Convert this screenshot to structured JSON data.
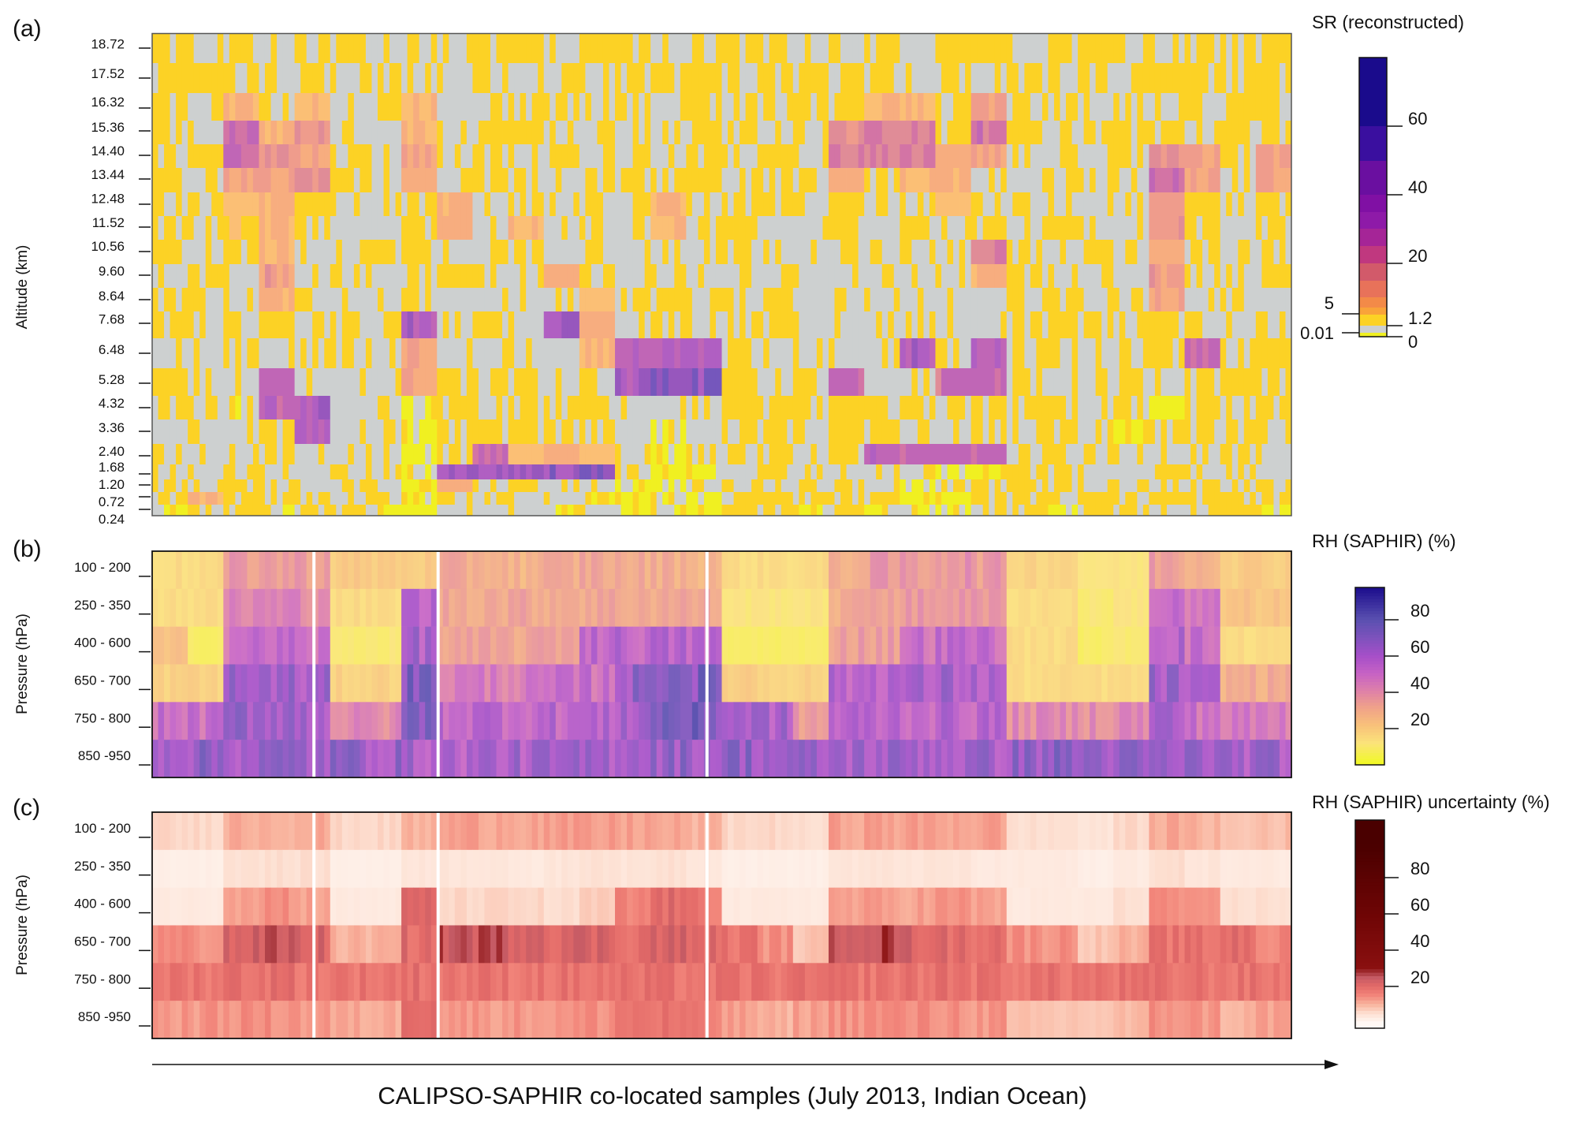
{
  "caption": "CALIPSO-SAPHIR co-located samples (July 2013, Indian Ocean)",
  "chart_data": [
    {
      "type": "heatmap",
      "panel": "(a)",
      "title": "SR (reconstructed)",
      "ylabel": "Altitude (km)",
      "xlabel": "CALIPSO-SAPHIR co-located samples (July 2013, Indian Ocean)",
      "rows": [
        "18.72",
        "17.52",
        "16.32",
        "15.36",
        "14.40",
        "13.44",
        "12.48",
        "11.52",
        "10.56",
        "9.60",
        "8.64",
        "7.68",
        "6.48",
        "5.28",
        "4.32",
        "3.36",
        "2.40",
        "1.68",
        "1.20",
        "0.72",
        "0.24"
      ],
      "colorbar": {
        "ticks_right": [
          "60",
          "40",
          "20",
          "1.2",
          "0"
        ],
        "ticks_left": [
          "5",
          "0.01"
        ],
        "levels": [
          0,
          0.01,
          1.2,
          5,
          10,
          15,
          20,
          25,
          30,
          40,
          50,
          60,
          80
        ],
        "colors": [
          "#f0f021",
          "#cdd0d0",
          "#fcd225",
          "#f9a33a",
          "#f38a48",
          "#e8725a",
          "#d25a6a",
          "#c0387f",
          "#a52597",
          "#8e1aa8",
          "#6a0fa0",
          "#3a0f9f",
          "#1a0b8c"
        ]
      },
      "values": [
        [
          3,
          3,
          3,
          0.5,
          3,
          3,
          0.5,
          3,
          0.5,
          3,
          3,
          0.5,
          3,
          3,
          0.5,
          3,
          3,
          3,
          0.5,
          3,
          3,
          0.5,
          3,
          3,
          0.5,
          3,
          3,
          3,
          0.5,
          3,
          3,
          3
        ],
        [
          3,
          3,
          3,
          0.5,
          3,
          3,
          3,
          0.5,
          0.5,
          3,
          0.5,
          3,
          0.5,
          3,
          3,
          3,
          3,
          3,
          3,
          0.5,
          3,
          3,
          3,
          0.5,
          3,
          3,
          3,
          0.5,
          3,
          3,
          3,
          3
        ],
        [
          3,
          0.5,
          10,
          3,
          10,
          0.5,
          3,
          10,
          0.5,
          3,
          0.5,
          3,
          0.5,
          3,
          0.5,
          3,
          3,
          0.5,
          3,
          3,
          10,
          10,
          3,
          18,
          3,
          3,
          0.5,
          3,
          3,
          0.5,
          3,
          3
        ],
        [
          3,
          0.5,
          30,
          10,
          18,
          3,
          0.5,
          10,
          0.5,
          3,
          3,
          0.5,
          3,
          0.5,
          3,
          3,
          3,
          0.5,
          3,
          18,
          25,
          25,
          3,
          30,
          3,
          0.5,
          3,
          3,
          3,
          0.5,
          3,
          3
        ],
        [
          3,
          3,
          35,
          20,
          15,
          3,
          0.5,
          15,
          0.5,
          3,
          0.5,
          3,
          0.5,
          3,
          0.5,
          3,
          0.5,
          3,
          0.5,
          25,
          25,
          25,
          10,
          15,
          0.5,
          3,
          0.5,
          3,
          20,
          15,
          0.5,
          15
        ],
        [
          3,
          0.5,
          15,
          15,
          20,
          3,
          0.5,
          12,
          0.5,
          3,
          3,
          0.5,
          3,
          0.5,
          3,
          3,
          0.5,
          3,
          0.5,
          12,
          3,
          10,
          12,
          0.5,
          0.5,
          3,
          0.5,
          3,
          30,
          15,
          0.5,
          15
        ],
        [
          0.5,
          3,
          8,
          12,
          3,
          0.5,
          0.5,
          3,
          12,
          0.5,
          3,
          0.5,
          3,
          0.5,
          12,
          3,
          0.5,
          3,
          0.5,
          3,
          0.5,
          0.5,
          8,
          3,
          3,
          0.5,
          3,
          0.5,
          18,
          3,
          0.5,
          3
        ],
        [
          0.5,
          3,
          5,
          10,
          3,
          0.5,
          0.5,
          3,
          12,
          0.5,
          10,
          0.5,
          3,
          0.5,
          10,
          3,
          3,
          0.5,
          0.5,
          3,
          0.5,
          0.5,
          0.5,
          3,
          0.5,
          3,
          0.5,
          0.5,
          18,
          3,
          0.5,
          3
        ],
        [
          0.5,
          0.5,
          3,
          10,
          0.5,
          0.5,
          0.5,
          3,
          0.5,
          0.5,
          3,
          0.5,
          0.5,
          0.5,
          0.5,
          0.5,
          0.5,
          0.5,
          0.5,
          0.5,
          0.5,
          0.5,
          0.5,
          25,
          3,
          0.5,
          3,
          0.5,
          12,
          3,
          0.5,
          3
        ],
        [
          0.5,
          3,
          0.5,
          18,
          0.5,
          0.5,
          0.5,
          0.5,
          3,
          0.5,
          0.5,
          12,
          3,
          0.5,
          3,
          0.5,
          0.5,
          0.5,
          0.5,
          0.5,
          0.5,
          0.5,
          0.5,
          10,
          3,
          0.5,
          0.5,
          0.5,
          18,
          0.5,
          0.5,
          3
        ],
        [
          3,
          0.5,
          0.5,
          12,
          0.5,
          0.5,
          0.5,
          3,
          0.5,
          0.5,
          0.5,
          0.5,
          8,
          0.5,
          3,
          0.5,
          0.5,
          3,
          0.5,
          0.5,
          0.5,
          0.5,
          0.5,
          0.5,
          0.5,
          3,
          0.5,
          0.5,
          15,
          0.5,
          3,
          0.5
        ],
        [
          3,
          3,
          0.5,
          3,
          0.5,
          3,
          0.5,
          45,
          0.5,
          3,
          0.5,
          50,
          12,
          0.5,
          3,
          0.5,
          3,
          3,
          0.5,
          0.5,
          0.5,
          0.5,
          0.5,
          0.5,
          3,
          3,
          3,
          3,
          3,
          3,
          0.5,
          3
        ],
        [
          0.5,
          0.5,
          3,
          0.5,
          0.5,
          3,
          0.5,
          15,
          0.5,
          0.5,
          0.5,
          0.5,
          10,
          40,
          40,
          40,
          3,
          0.5,
          0.5,
          0.5,
          0.5,
          45,
          3,
          35,
          3,
          3,
          0.5,
          3,
          3,
          30,
          3,
          3
        ],
        [
          3,
          0.5,
          0.5,
          35,
          0.5,
          0.5,
          0.5,
          15,
          3,
          3,
          3,
          0.5,
          3,
          45,
          60,
          55,
          3,
          0.5,
          3,
          35,
          0.5,
          0.5,
          30,
          35,
          3,
          0.5,
          3,
          3,
          0.5,
          3,
          3,
          3
        ],
        [
          3,
          0.5,
          0.005,
          35,
          45,
          0.5,
          0.5,
          0.005,
          3,
          3,
          3,
          3,
          3,
          0.5,
          0.5,
          0.5,
          3,
          3,
          3,
          3,
          3,
          3,
          0.5,
          3,
          3,
          3,
          0.5,
          3,
          0.005,
          3,
          0.5,
          3
        ],
        [
          0.5,
          3,
          0.5,
          3,
          45,
          0.5,
          0.5,
          0.005,
          3,
          3,
          3,
          3,
          3,
          0.5,
          0.005,
          0.5,
          3,
          0.5,
          0.5,
          3,
          3,
          3,
          0.5,
          3,
          0.5,
          3,
          0.5,
          0.005,
          3,
          0.5,
          3,
          0.5
        ],
        [
          0.5,
          0.5,
          0.5,
          0.5,
          0.5,
          0.5,
          0.5,
          0.005,
          3,
          30,
          8,
          12,
          8,
          0.5,
          0.005,
          0.5,
          0.5,
          3,
          0.5,
          3,
          35,
          30,
          35,
          35,
          0.5,
          3,
          0.5,
          0.5,
          0.5,
          0.5,
          3,
          0.5
        ],
        [
          0.5,
          0.5,
          3,
          0.5,
          0.5,
          0.5,
          0.5,
          0.005,
          50,
          50,
          50,
          55,
          55,
          0.5,
          0.005,
          0.005,
          0.5,
          3,
          0.5,
          0.5,
          0.5,
          0.5,
          0.005,
          0.005,
          0.5,
          3,
          0.5,
          0.5,
          3,
          0.5,
          0.5,
          0.5
        ],
        [
          0.5,
          3,
          3,
          0.5,
          0.5,
          3,
          0.5,
          0.005,
          12,
          0.5,
          3,
          0.5,
          0.5,
          0.005,
          0.005,
          0.5,
          3,
          0.5,
          3,
          0.5,
          0.5,
          0.005,
          3,
          0.5,
          3,
          3,
          0.5,
          3,
          0.5,
          3,
          0.5,
          3
        ],
        [
          3,
          12,
          3,
          3,
          3,
          0.5,
          3,
          0.005,
          3,
          0.5,
          0.5,
          0.5,
          0.005,
          0.005,
          0.005,
          0.005,
          3,
          3,
          3,
          3,
          3,
          0.005,
          0.005,
          3,
          3,
          3,
          3,
          0.5,
          3,
          3,
          3,
          3
        ],
        [
          0.005,
          3,
          3,
          0.005,
          3,
          3,
          0.005,
          0.005,
          0.5,
          0.5,
          0.5,
          0.005,
          0.5,
          0.005,
          0.005,
          0.005,
          3,
          3,
          0.005,
          3,
          0.005,
          0.005,
          0.005,
          0.5,
          3,
          0.005,
          3,
          3,
          0.5,
          3,
          3,
          0.005
        ]
      ]
    },
    {
      "type": "heatmap",
      "panel": "(b)",
      "title": "RH (SAPHIR) (%)",
      "ylabel": "Pressure (hPa)",
      "rows": [
        "100 - 200",
        "250 - 350",
        "400 - 600",
        "650 - 700",
        "750 - 800",
        "850 -950"
      ],
      "colorbar": {
        "ticks": [
          "80",
          "60",
          "40",
          "20"
        ],
        "range": [
          0,
          98
        ],
        "stops": [
          [
            0,
            "#f0f921"
          ],
          [
            12,
            "#fbe37a"
          ],
          [
            22,
            "#f8c07a"
          ],
          [
            32,
            "#efa08a"
          ],
          [
            40,
            "#e083a6"
          ],
          [
            50,
            "#c763c4"
          ],
          [
            60,
            "#a64fc8"
          ],
          [
            70,
            "#7d52bc"
          ],
          [
            80,
            "#5a50b0"
          ],
          [
            98,
            "#1a0b8c"
          ]
        ]
      },
      "values": [
        [
          15,
          15,
          35,
          35,
          35,
          20,
          20,
          20,
          30,
          30,
          28,
          30,
          32,
          30,
          30,
          28,
          15,
          15,
          15,
          30,
          35,
          35,
          38,
          35,
          18,
          18,
          12,
          12,
          35,
          30,
          20,
          20
        ],
        [
          15,
          15,
          42,
          42,
          42,
          15,
          15,
          55,
          32,
          32,
          32,
          32,
          32,
          32,
          32,
          32,
          12,
          12,
          12,
          30,
          35,
          35,
          38,
          35,
          15,
          15,
          10,
          12,
          50,
          45,
          22,
          22
        ],
        [
          22,
          8,
          50,
          52,
          48,
          10,
          10,
          60,
          32,
          32,
          32,
          35,
          55,
          55,
          55,
          55,
          8,
          8,
          8,
          35,
          35,
          50,
          52,
          52,
          15,
          15,
          8,
          10,
          58,
          50,
          15,
          15
        ],
        [
          18,
          18,
          62,
          62,
          60,
          18,
          18,
          72,
          45,
          45,
          45,
          48,
          50,
          65,
          75,
          72,
          20,
          18,
          18,
          55,
          58,
          58,
          60,
          58,
          15,
          15,
          15,
          15,
          62,
          55,
          30,
          30
        ],
        [
          50,
          50,
          65,
          65,
          62,
          40,
          40,
          72,
          55,
          55,
          55,
          55,
          55,
          62,
          75,
          72,
          62,
          60,
          35,
          55,
          55,
          55,
          55,
          55,
          40,
          40,
          40,
          42,
          60,
          50,
          45,
          45
        ],
        [
          65,
          66,
          64,
          65,
          64,
          66,
          64,
          60,
          58,
          60,
          60,
          60,
          62,
          65,
          66,
          65,
          68,
          64,
          62,
          62,
          62,
          63,
          62,
          62,
          66,
          68,
          66,
          64,
          62,
          64,
          62,
          62
        ]
      ]
    },
    {
      "type": "heatmap",
      "panel": "(c)",
      "title": "RH (SAPHIR) uncertainty (%)",
      "ylabel": "Pressure (hPa)",
      "rows": [
        "100 - 200",
        "250 - 350",
        "400 - 600",
        "650 - 700",
        "750 - 800",
        "850 -950"
      ],
      "colorbar": {
        "ticks": [
          "80",
          "60",
          "40",
          "20"
        ],
        "range": [
          0,
          98
        ],
        "stops": [
          [
            0,
            "#fff8f4"
          ],
          [
            5,
            "#fde0d2"
          ],
          [
            10,
            "#f9b49e"
          ],
          [
            15,
            "#f2857a"
          ],
          [
            20,
            "#e36a68"
          ],
          [
            25,
            "#c45a64"
          ],
          [
            30,
            "#8a1010"
          ],
          [
            60,
            "#6e0505"
          ],
          [
            98,
            "#4a0000"
          ]
        ]
      },
      "values": [
        [
          6,
          6,
          11,
          11,
          11,
          6,
          6,
          10,
          12,
          12,
          12,
          12,
          12,
          12,
          11,
          10,
          6,
          6,
          5,
          12,
          12,
          12,
          12,
          12,
          5,
          5,
          4,
          6,
          11,
          10,
          8,
          9
        ],
        [
          2,
          2,
          5,
          5,
          5,
          2,
          2,
          4,
          4,
          4,
          3,
          4,
          5,
          4,
          5,
          4,
          2,
          2,
          2,
          4,
          4,
          4,
          4,
          3,
          3,
          3,
          2,
          3,
          5,
          4,
          3,
          3
        ],
        [
          3,
          3,
          13,
          14,
          12,
          3,
          3,
          20,
          6,
          6,
          6,
          5,
          7,
          15,
          20,
          17,
          3,
          3,
          3,
          12,
          12,
          12,
          13,
          12,
          3,
          3,
          3,
          5,
          14,
          12,
          5,
          5
        ],
        [
          14,
          14,
          22,
          24,
          22,
          10,
          10,
          20,
          25,
          25,
          24,
          22,
          22,
          20,
          22,
          20,
          18,
          14,
          8,
          26,
          26,
          22,
          20,
          20,
          14,
          14,
          8,
          10,
          18,
          18,
          20,
          15
        ],
        [
          18,
          18,
          19,
          19,
          18,
          18,
          18,
          19,
          18,
          18,
          18,
          18,
          18,
          18,
          18,
          18,
          18,
          18,
          18,
          18,
          18,
          18,
          19,
          18,
          18,
          18,
          18,
          18,
          18,
          18,
          18,
          18
        ],
        [
          13,
          13,
          14,
          14,
          13,
          11,
          11,
          22,
          13,
          13,
          13,
          13,
          14,
          18,
          18,
          16,
          12,
          10,
          12,
          14,
          14,
          14,
          14,
          13,
          8,
          8,
          8,
          9,
          14,
          13,
          10,
          12
        ]
      ]
    }
  ]
}
